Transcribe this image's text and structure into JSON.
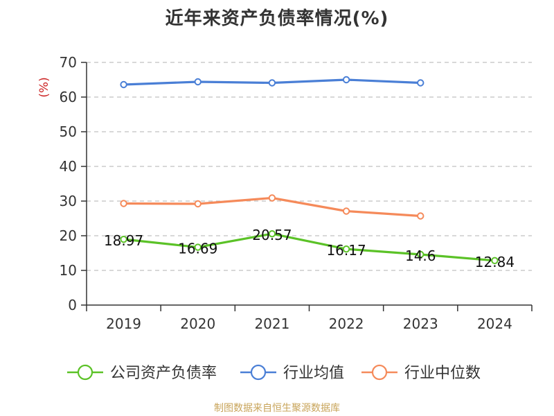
{
  "chart_data": {
    "type": "line",
    "title": "近年来资产负债率情况(%)",
    "ylabel": "(%)",
    "xlabel": "",
    "categories": [
      "2019",
      "2020",
      "2021",
      "2022",
      "2023",
      "2024"
    ],
    "ylim": [
      0,
      70
    ],
    "yticks": [
      0,
      10,
      20,
      30,
      40,
      50,
      60,
      70
    ],
    "grid": true,
    "legend_position": "bottom",
    "series": [
      {
        "name": "公司资产负债率",
        "color": "#5bc227",
        "values": [
          18.97,
          16.69,
          20.57,
          16.17,
          14.6,
          12.84
        ],
        "labels": [
          "18.97",
          "16.69",
          "20.57",
          "16.17",
          "14.6",
          "12.84"
        ]
      },
      {
        "name": "行业均值",
        "color": "#4a7fd6",
        "values": [
          63.6,
          64.4,
          64.1,
          65.0,
          64.1,
          null
        ]
      },
      {
        "name": "行业中位数",
        "color": "#f58a5a",
        "values": [
          29.3,
          29.2,
          30.9,
          27.1,
          25.7,
          null
        ]
      }
    ]
  },
  "source_note": "制图数据来自恒生聚源数据库",
  "colors": {
    "ylabel": "#cc2222",
    "axis": "#333333",
    "grid": "#c0c0c0"
  }
}
